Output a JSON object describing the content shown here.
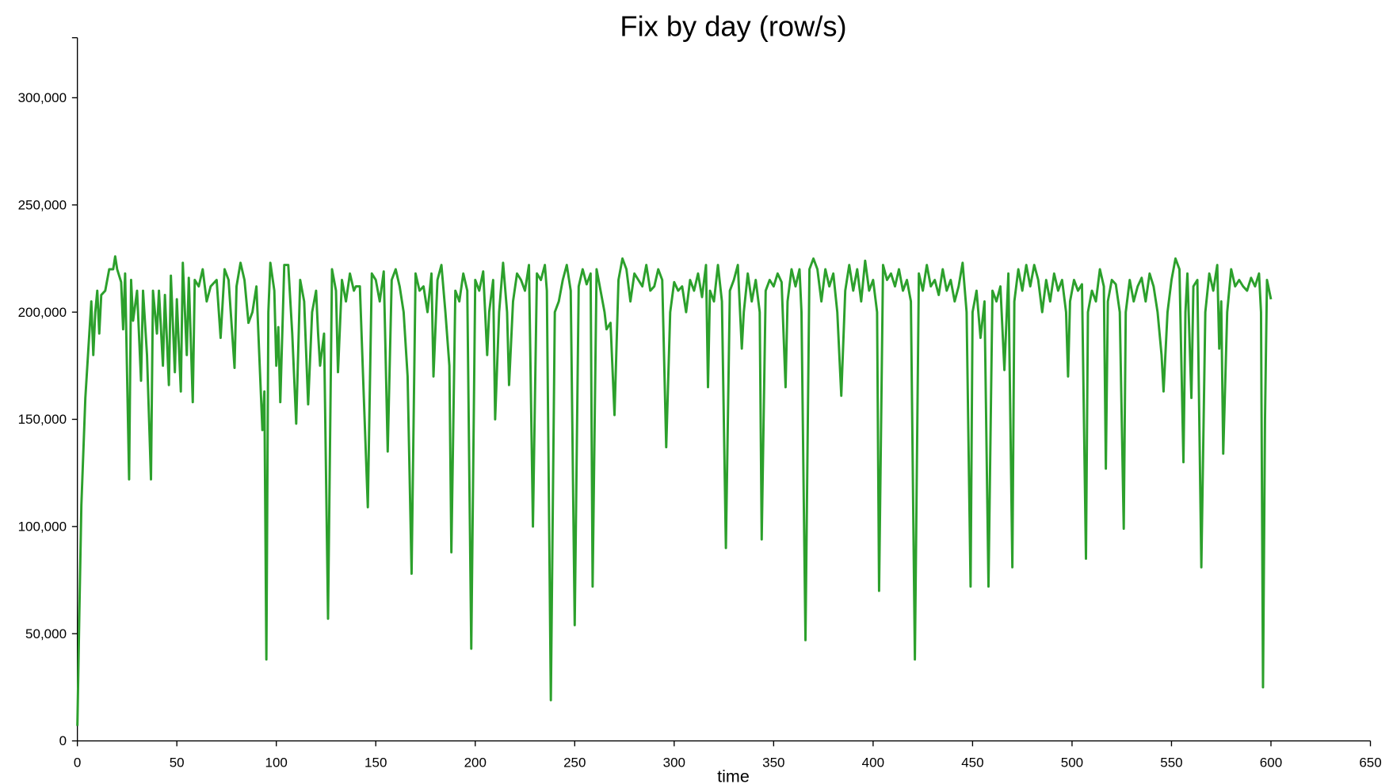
{
  "chart_data": {
    "type": "line",
    "title": "Fix by day (row/s)",
    "x_label": "time",
    "xlim": [
      0,
      650
    ],
    "xticks": [
      0,
      50,
      100,
      150,
      200,
      250,
      300,
      350,
      400,
      450,
      500,
      550,
      600,
      650
    ],
    "ylim": [
      0,
      328000
    ],
    "yticks": [
      0,
      {
        "value": 50000,
        "label": "50,000"
      },
      {
        "value": 100000,
        "label": "100,000"
      },
      {
        "value": 150000,
        "label": "150,000"
      },
      {
        "value": 200000,
        "label": "200,000"
      },
      {
        "value": 250000,
        "label": "250,000"
      },
      {
        "value": 300000,
        "label": "300,000"
      }
    ],
    "grid": false,
    "x": [
      0,
      1,
      2,
      4,
      6,
      7,
      8,
      9,
      10,
      11,
      12,
      14,
      16,
      18,
      19,
      20,
      22,
      23,
      24,
      26,
      27,
      28,
      30,
      32,
      33,
      35,
      37,
      38,
      40,
      41,
      43,
      44,
      46,
      47,
      49,
      50,
      52,
      53,
      55,
      56,
      58,
      59,
      61,
      63,
      65,
      67,
      70,
      72,
      74,
      76,
      79,
      80,
      82,
      84,
      86,
      88,
      90,
      93,
      94,
      95,
      96,
      97,
      99,
      100,
      101,
      102,
      104,
      106,
      108,
      110,
      112,
      114,
      116,
      118,
      120,
      121,
      122,
      124,
      126,
      128,
      130,
      131,
      133,
      135,
      137,
      139,
      140,
      142,
      144,
      146,
      148,
      150,
      152,
      154,
      156,
      158,
      160,
      162,
      164,
      166,
      168,
      170,
      172,
      174,
      176,
      178,
      179,
      181,
      183,
      185,
      187,
      188,
      190,
      192,
      194,
      196,
      198,
      200,
      202,
      204,
      206,
      207,
      209,
      210,
      212,
      214,
      216,
      217,
      219,
      221,
      223,
      225,
      227,
      229,
      231,
      233,
      235,
      236,
      238,
      240,
      242,
      244,
      246,
      248,
      250,
      252,
      254,
      256,
      258,
      259,
      261,
      263,
      265,
      266,
      268,
      270,
      272,
      274,
      276,
      278,
      280,
      282,
      284,
      286,
      288,
      290,
      292,
      294,
      296,
      298,
      300,
      302,
      304,
      306,
      308,
      310,
      312,
      314,
      316,
      317,
      318,
      320,
      322,
      324,
      326,
      328,
      330,
      332,
      334,
      335,
      337,
      339,
      341,
      343,
      344,
      346,
      348,
      350,
      352,
      354,
      356,
      357,
      359,
      361,
      363,
      364,
      366,
      368,
      370,
      372,
      374,
      376,
      378,
      380,
      382,
      384,
      386,
      388,
      390,
      392,
      394,
      396,
      398,
      400,
      402,
      403,
      405,
      407,
      409,
      411,
      413,
      415,
      417,
      419,
      421,
      423,
      425,
      427,
      429,
      431,
      433,
      435,
      437,
      439,
      441,
      443,
      445,
      447,
      449,
      450,
      452,
      454,
      456,
      458,
      460,
      462,
      464,
      466,
      468,
      470,
      471,
      473,
      475,
      477,
      479,
      481,
      483,
      485,
      487,
      489,
      491,
      493,
      495,
      497,
      498,
      499,
      501,
      503,
      505,
      507,
      508,
      510,
      512,
      514,
      516,
      517,
      518,
      520,
      522,
      524,
      526,
      527,
      529,
      531,
      533,
      535,
      537,
      539,
      541,
      543,
      545,
      546,
      548,
      550,
      552,
      554,
      556,
      557,
      558,
      560,
      561,
      563,
      565,
      567,
      569,
      571,
      573,
      574,
      575,
      576,
      578,
      580,
      582,
      584,
      586,
      588,
      590,
      592,
      594,
      595,
      596,
      597,
      598,
      600
    ],
    "series": [
      {
        "color": "#2ca02c",
        "values": [
          7000,
          60000,
          110000,
          160000,
          190000,
          205000,
          180000,
          200000,
          210000,
          190000,
          208000,
          210000,
          220000,
          220000,
          226000,
          220000,
          214000,
          192000,
          218000,
          122000,
          215000,
          196000,
          210000,
          168000,
          210000,
          180000,
          122000,
          210000,
          190000,
          210000,
          175000,
          208000,
          166000,
          217000,
          172000,
          206000,
          163000,
          223000,
          180000,
          216000,
          158000,
          215000,
          212000,
          220000,
          205000,
          212000,
          215000,
          188000,
          220000,
          215000,
          174000,
          212000,
          223000,
          215000,
          195000,
          200000,
          212000,
          145000,
          163000,
          38000,
          200000,
          223000,
          210000,
          175000,
          193000,
          158000,
          222000,
          222000,
          190000,
          148000,
          215000,
          205000,
          157000,
          200000,
          210000,
          190000,
          175000,
          190000,
          57000,
          220000,
          210000,
          172000,
          215000,
          205000,
          218000,
          210000,
          212000,
          212000,
          160000,
          109000,
          218000,
          215000,
          205000,
          219000,
          135000,
          215000,
          220000,
          212000,
          200000,
          170000,
          78000,
          218000,
          210000,
          212000,
          200000,
          218000,
          170000,
          215000,
          222000,
          200000,
          175000,
          88000,
          210000,
          205000,
          218000,
          210000,
          43000,
          215000,
          210000,
          219000,
          180000,
          200000,
          215000,
          150000,
          200000,
          223000,
          200000,
          166000,
          205000,
          218000,
          215000,
          210000,
          222000,
          100000,
          218000,
          215000,
          222000,
          210000,
          19000,
          200000,
          205000,
          215000,
          222000,
          210000,
          54000,
          212000,
          220000,
          213000,
          218000,
          72000,
          220000,
          210000,
          200000,
          192000,
          195000,
          152000,
          215000,
          225000,
          220000,
          205000,
          218000,
          215000,
          212000,
          222000,
          210000,
          212000,
          220000,
          215000,
          137000,
          200000,
          214000,
          210000,
          212000,
          200000,
          215000,
          210000,
          218000,
          207000,
          222000,
          165000,
          210000,
          205000,
          222000,
          205000,
          90000,
          210000,
          215000,
          222000,
          183000,
          200000,
          218000,
          205000,
          215000,
          200000,
          94000,
          210000,
          215000,
          212000,
          218000,
          214000,
          165000,
          205000,
          220000,
          212000,
          220000,
          200000,
          47000,
          220000,
          225000,
          220000,
          205000,
          220000,
          212000,
          218000,
          200000,
          161000,
          210000,
          222000,
          210000,
          220000,
          205000,
          224000,
          210000,
          215000,
          200000,
          70000,
          222000,
          215000,
          218000,
          212000,
          220000,
          210000,
          215000,
          205000,
          38000,
          218000,
          210000,
          222000,
          212000,
          215000,
          208000,
          220000,
          210000,
          215000,
          205000,
          212000,
          223000,
          200000,
          72000,
          200000,
          210000,
          188000,
          205000,
          72000,
          210000,
          205000,
          212000,
          173000,
          218000,
          81000,
          205000,
          220000,
          210000,
          222000,
          212000,
          222000,
          215000,
          200000,
          215000,
          205000,
          218000,
          210000,
          215000,
          200000,
          170000,
          205000,
          215000,
          210000,
          213000,
          85000,
          200000,
          210000,
          205000,
          220000,
          212000,
          127000,
          205000,
          215000,
          213000,
          200000,
          99000,
          200000,
          215000,
          205000,
          212000,
          216000,
          205000,
          218000,
          212000,
          200000,
          180000,
          163000,
          200000,
          215000,
          225000,
          220000,
          130000,
          200000,
          218000,
          160000,
          212000,
          215000,
          81000,
          200000,
          218000,
          210000,
          222000,
          183000,
          205000,
          134000,
          200000,
          220000,
          212000,
          215000,
          212000,
          210000,
          216000,
          212000,
          218000,
          200000,
          25000,
          150000,
          215000,
          206000
        ]
      }
    ]
  }
}
